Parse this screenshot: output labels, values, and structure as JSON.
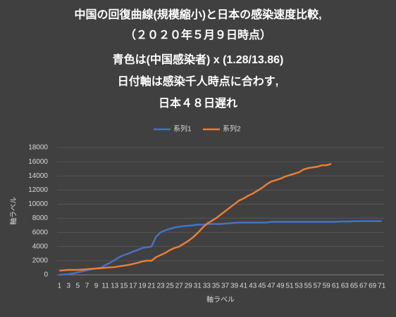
{
  "chart_data": {
    "type": "line",
    "title_lines": [
      "中国の回復曲線(規模縮小)と日本の感染速度比較,",
      "（２０２０年５月９日時点）",
      "青色は(中国感染者) x (1.28/13.86)",
      "日付軸は感染千人時点に合わす,",
      "日本４８日遅れ"
    ],
    "x_label": "軸ラベル",
    "y_label": "軸ラベル",
    "categories": [
      "1",
      null,
      "3",
      null,
      "5",
      null,
      "7",
      null,
      "9",
      null,
      "11",
      null,
      "13",
      null,
      "15",
      null,
      "17",
      null,
      "19",
      null,
      "21",
      null,
      "23",
      null,
      "25",
      null,
      "27",
      null,
      "29",
      null,
      "31",
      null,
      "33",
      null,
      "35",
      null,
      "37",
      null,
      "39",
      null,
      "41",
      null,
      "43",
      null,
      "45",
      null,
      "47",
      null,
      "49",
      null,
      "51",
      null,
      "53",
      null,
      "55",
      null,
      "57",
      null,
      "59",
      null,
      "61",
      null,
      "63",
      null,
      "65",
      null,
      "67",
      null,
      "69",
      null,
      "71"
    ],
    "series": [
      {
        "name": "系列1",
        "color": "#4472c4",
        "values": [
          0,
          50,
          100,
          200,
          350,
          500,
          650,
          800,
          900,
          1000,
          1400,
          1700,
          2100,
          2500,
          2800,
          3000,
          3300,
          3500,
          3800,
          3900,
          4000,
          5400,
          6000,
          6300,
          6500,
          6700,
          6800,
          6900,
          6950,
          7000,
          7100,
          7100,
          7150,
          7200,
          7200,
          7200,
          7250,
          7300,
          7350,
          7400,
          7400,
          7400,
          7400,
          7400,
          7400,
          7400,
          7500,
          7500,
          7500,
          7500,
          7500,
          7500,
          7500,
          7500,
          7500,
          7500,
          7500,
          7500,
          7500,
          7500,
          7500,
          7550,
          7550,
          7550,
          7600,
          7600,
          7600,
          7600,
          7600,
          7600,
          7600
        ]
      },
      {
        "name": "系列2",
        "color": "#ed7d31",
        "values": [
          600,
          650,
          700,
          700,
          700,
          750,
          800,
          850,
          900,
          950,
          1000,
          1050,
          1100,
          1200,
          1300,
          1400,
          1550,
          1700,
          1900,
          2000,
          2000,
          2500,
          2800,
          3100,
          3500,
          3800,
          4000,
          4400,
          4800,
          5300,
          5900,
          6600,
          7200,
          7600,
          8000,
          8500,
          9000,
          9500,
          10000,
          10500,
          10800,
          11200,
          11500,
          11900,
          12300,
          12800,
          13200,
          13400,
          13600,
          13900,
          14100,
          14300,
          14500,
          14900,
          15100,
          15200,
          15300,
          15500,
          15500,
          15700,
          null,
          null,
          null,
          null,
          null,
          null,
          null,
          null,
          null,
          null,
          null
        ]
      }
    ],
    "ylim": [
      0,
      18000
    ],
    "yticks": [
      0,
      2000,
      4000,
      6000,
      8000,
      10000,
      12000,
      14000,
      16000,
      18000
    ],
    "grid": true
  }
}
